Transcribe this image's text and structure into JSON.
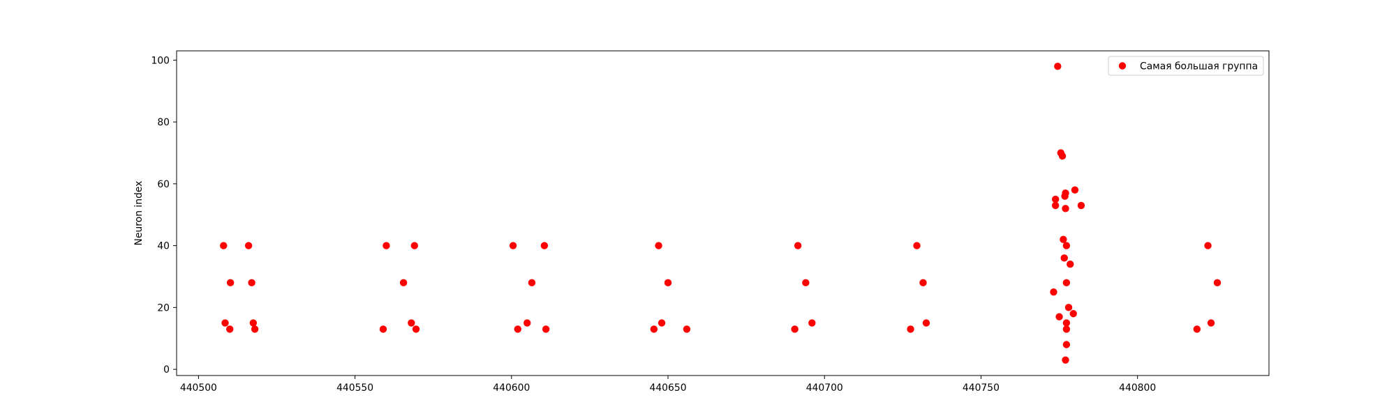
{
  "chart_data": {
    "type": "scatter",
    "title": "",
    "xlabel": "",
    "ylabel": "Neuron index",
    "xlim": [
      440493,
      440842
    ],
    "ylim": [
      -2,
      103
    ],
    "xticks": [
      440500,
      440550,
      440600,
      440650,
      440700,
      440750,
      440800
    ],
    "yticks": [
      0,
      20,
      40,
      60,
      80,
      100
    ],
    "grid": false,
    "legend_position": "top-right",
    "series": [
      {
        "name": "Самая большая группа",
        "color": "#ff0000",
        "marker": "circle",
        "points": [
          [
            440508,
            40
          ],
          [
            440508.5,
            15
          ],
          [
            440510,
            13
          ],
          [
            440510.2,
            28
          ],
          [
            440516,
            40
          ],
          [
            440517,
            28
          ],
          [
            440517.5,
            15
          ],
          [
            440518,
            13
          ],
          [
            440559,
            13
          ],
          [
            440560,
            40
          ],
          [
            440565.5,
            28
          ],
          [
            440568,
            15
          ],
          [
            440569,
            40
          ],
          [
            440569.5,
            13
          ],
          [
            440600.5,
            40
          ],
          [
            440602,
            13
          ],
          [
            440605,
            15
          ],
          [
            440606.5,
            28
          ],
          [
            440610.5,
            40
          ],
          [
            440611,
            13
          ],
          [
            440645.5,
            13
          ],
          [
            440647,
            40
          ],
          [
            440648,
            15
          ],
          [
            440650,
            28
          ],
          [
            440656,
            13
          ],
          [
            440690.5,
            13
          ],
          [
            440691.5,
            40
          ],
          [
            440694,
            28
          ],
          [
            440696,
            15
          ],
          [
            440727.5,
            13
          ],
          [
            440729.5,
            40
          ],
          [
            440731.5,
            28
          ],
          [
            440732.5,
            15
          ],
          [
            440773.2,
            25
          ],
          [
            440773.8,
            55
          ],
          [
            440773.8,
            53
          ],
          [
            440774.5,
            98
          ],
          [
            440775,
            17
          ],
          [
            440775.5,
            70
          ],
          [
            440776,
            69
          ],
          [
            440776.3,
            42
          ],
          [
            440776.6,
            36
          ],
          [
            440776.8,
            56
          ],
          [
            440777,
            57
          ],
          [
            440777,
            52
          ],
          [
            440777.3,
            40
          ],
          [
            440777.3,
            28
          ],
          [
            440777.3,
            15
          ],
          [
            440777.3,
            13
          ],
          [
            440777.3,
            8
          ],
          [
            440777,
            3
          ],
          [
            440778,
            20
          ],
          [
            440778.5,
            34
          ],
          [
            440779.5,
            18
          ],
          [
            440780,
            58
          ],
          [
            440782,
            53
          ],
          [
            440819,
            13
          ],
          [
            440822.5,
            40
          ],
          [
            440823.5,
            15
          ],
          [
            440825.5,
            28
          ]
        ]
      }
    ]
  }
}
